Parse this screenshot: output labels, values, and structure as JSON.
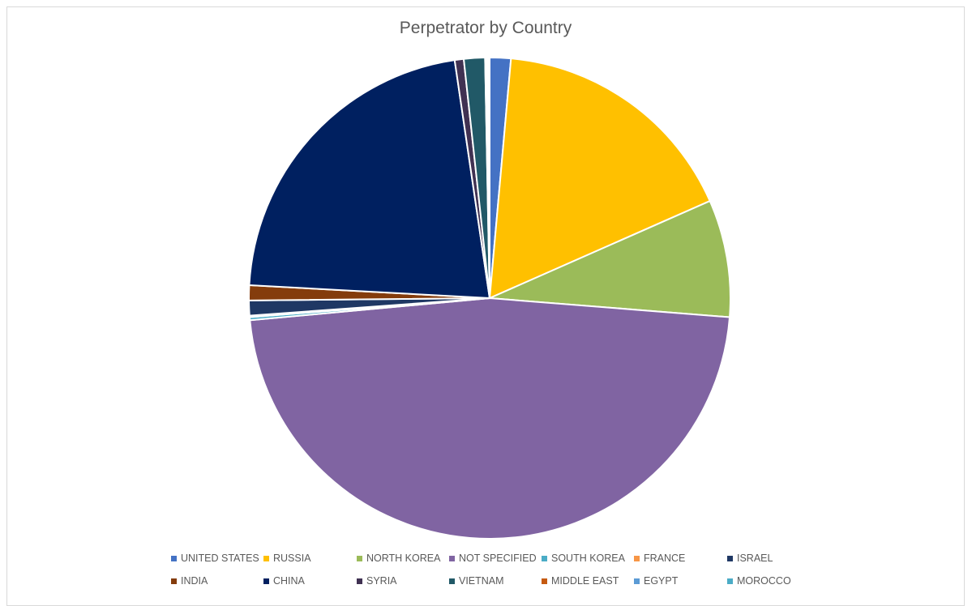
{
  "chart_data": {
    "type": "pie",
    "title": "Perpetrator by Country",
    "legend_position": "bottom",
    "slices": [
      {
        "label": "UNITED STATES",
        "value": 1.4,
        "color": "#4472c4"
      },
      {
        "label": "RUSSIA",
        "value": 16.8,
        "color": "#ffc000"
      },
      {
        "label": "NORTH KOREA",
        "value": 7.8,
        "color": "#9bbb59"
      },
      {
        "label": "NOT SPECIFIED",
        "value": 46.8,
        "color": "#8064a2"
      },
      {
        "label": "SOUTH KOREA",
        "value": 0.2,
        "color": "#4bacc6"
      },
      {
        "label": "FRANCE",
        "value": 0.1,
        "color": "#f79646"
      },
      {
        "label": "ISRAEL",
        "value": 1.0,
        "color": "#1f3864"
      },
      {
        "label": "INDIA",
        "value": 1.0,
        "color": "#843c0c"
      },
      {
        "label": "CHINA",
        "value": 21.6,
        "color": "#002060"
      },
      {
        "label": "SYRIA",
        "value": 0.6,
        "color": "#403152"
      },
      {
        "label": "VIETNAM",
        "value": 1.4,
        "color": "#215967"
      },
      {
        "label": "MIDDLE EAST",
        "value": 0.1,
        "color": "#c55a11"
      },
      {
        "label": "EGYPT",
        "value": 0.1,
        "color": "#5b9bd5"
      },
      {
        "label": "MOROCCO",
        "value": 0.1,
        "color": "#4bacc6"
      }
    ]
  }
}
